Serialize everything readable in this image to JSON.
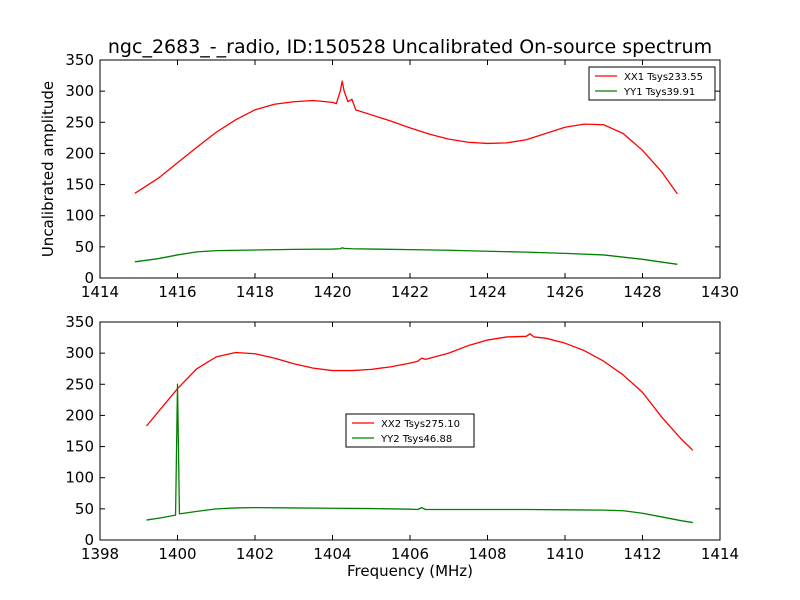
{
  "figure": {
    "title": "ngc_2683_-_radio, ID:150528 Uncalibrated On-source spectrum",
    "xlabel": "Frequency (MHz)",
    "ylabel": "Uncalibrated amplitude"
  },
  "chart_data": [
    {
      "type": "line",
      "xlim": [
        1414,
        1430
      ],
      "ylim": [
        0,
        350
      ],
      "xticks": [
        "1414",
        "1416",
        "1418",
        "1420",
        "1422",
        "1424",
        "1426",
        "1428",
        "1430"
      ],
      "yticks": [
        "0",
        "50",
        "100",
        "150",
        "200",
        "250",
        "300",
        "350"
      ],
      "legend_position": "top-right",
      "series": [
        {
          "name": "XX1 Tsys233.55",
          "color": "#ff0000",
          "points": [
            [
              1414.9,
              136
            ],
            [
              1415.5,
              160
            ],
            [
              1416,
              185
            ],
            [
              1416.5,
              210
            ],
            [
              1417,
              234
            ],
            [
              1417.5,
              254
            ],
            [
              1418,
              270
            ],
            [
              1418.5,
              279
            ],
            [
              1419,
              283
            ],
            [
              1419.5,
              285
            ],
            [
              1420,
              282
            ],
            [
              1420.1,
              280
            ],
            [
              1420.2,
              300
            ],
            [
              1420.25,
              316
            ],
            [
              1420.3,
              300
            ],
            [
              1420.4,
              283
            ],
            [
              1420.5,
              287
            ],
            [
              1420.6,
              270
            ],
            [
              1421,
              262
            ],
            [
              1421.5,
              252
            ],
            [
              1422,
              241
            ],
            [
              1422.5,
              231
            ],
            [
              1423,
              223
            ],
            [
              1423.5,
              218
            ],
            [
              1424,
              216
            ],
            [
              1424.5,
              217
            ],
            [
              1425,
              222
            ],
            [
              1425.5,
              232
            ],
            [
              1426,
              242
            ],
            [
              1426.5,
              247
            ],
            [
              1427,
              246
            ],
            [
              1427.5,
              232
            ],
            [
              1428,
              205
            ],
            [
              1428.5,
              170
            ],
            [
              1428.9,
              135
            ]
          ]
        },
        {
          "name": "YY1 Tsys39.91",
          "color": "#008000",
          "points": [
            [
              1414.9,
              26
            ],
            [
              1415.5,
              31
            ],
            [
              1416,
              37
            ],
            [
              1416.5,
              42
            ],
            [
              1417,
              44
            ],
            [
              1418,
              45
            ],
            [
              1419,
              46
            ],
            [
              1420,
              46.5
            ],
            [
              1420.2,
              47
            ],
            [
              1420.25,
              48.5
            ],
            [
              1420.3,
              47.5
            ],
            [
              1420.5,
              47
            ],
            [
              1421,
              46.5
            ],
            [
              1422,
              45.5
            ],
            [
              1423,
              44.5
            ],
            [
              1424,
              43
            ],
            [
              1425,
              41.5
            ],
            [
              1426,
              39.5
            ],
            [
              1427,
              37
            ],
            [
              1428,
              30
            ],
            [
              1428.9,
              22
            ]
          ]
        }
      ]
    },
    {
      "type": "line",
      "xlim": [
        1398,
        1414
      ],
      "ylim": [
        0,
        350
      ],
      "xticks": [
        "1398",
        "1400",
        "1402",
        "1404",
        "1406",
        "1408",
        "1410",
        "1412",
        "1414"
      ],
      "yticks": [
        "0",
        "50",
        "100",
        "150",
        "200",
        "250",
        "300",
        "350"
      ],
      "legend_position": "center",
      "series": [
        {
          "name": "XX2 Tsys275.10",
          "color": "#ff0000",
          "points": [
            [
              1399.2,
              183
            ],
            [
              1399.6,
              213
            ],
            [
              1400,
              243
            ],
            [
              1400.5,
              275
            ],
            [
              1401,
              294
            ],
            [
              1401.5,
              301
            ],
            [
              1402,
              299
            ],
            [
              1402.5,
              292
            ],
            [
              1403,
              283
            ],
            [
              1403.5,
              276
            ],
            [
              1404,
              272
            ],
            [
              1404.5,
              272
            ],
            [
              1405,
              274
            ],
            [
              1405.5,
              278
            ],
            [
              1406,
              284
            ],
            [
              1406.2,
              287
            ],
            [
              1406.3,
              292
            ],
            [
              1406.4,
              290
            ],
            [
              1407,
              300
            ],
            [
              1407.5,
              312
            ],
            [
              1408,
              321
            ],
            [
              1408.5,
              326
            ],
            [
              1409,
              327
            ],
            [
              1409.1,
              331
            ],
            [
              1409.2,
              326
            ],
            [
              1409.5,
              324
            ],
            [
              1410,
              316
            ],
            [
              1410.5,
              304
            ],
            [
              1411,
              287
            ],
            [
              1411.5,
              265
            ],
            [
              1412,
              237
            ],
            [
              1412.5,
              197
            ],
            [
              1413,
              162
            ],
            [
              1413.3,
              144
            ]
          ]
        },
        {
          "name": "YY2 Tsys46.88",
          "color": "#008000",
          "points": [
            [
              1399.2,
              32
            ],
            [
              1399.6,
              36
            ],
            [
              1399.95,
              40
            ],
            [
              1400,
              250
            ],
            [
              1400.05,
              42
            ],
            [
              1400.5,
              46
            ],
            [
              1401,
              50
            ],
            [
              1401.5,
              51.5
            ],
            [
              1402,
              52
            ],
            [
              1403,
              51.5
            ],
            [
              1404,
              51
            ],
            [
              1405,
              50.5
            ],
            [
              1406,
              49.5
            ],
            [
              1406.2,
              49
            ],
            [
              1406.3,
              52
            ],
            [
              1406.4,
              49
            ],
            [
              1407,
              49
            ],
            [
              1408,
              49
            ],
            [
              1409,
              49
            ],
            [
              1410,
              48.5
            ],
            [
              1411,
              48
            ],
            [
              1411.5,
              47
            ],
            [
              1412,
              43
            ],
            [
              1412.5,
              37
            ],
            [
              1413,
              31
            ],
            [
              1413.3,
              28
            ]
          ]
        }
      ]
    }
  ]
}
